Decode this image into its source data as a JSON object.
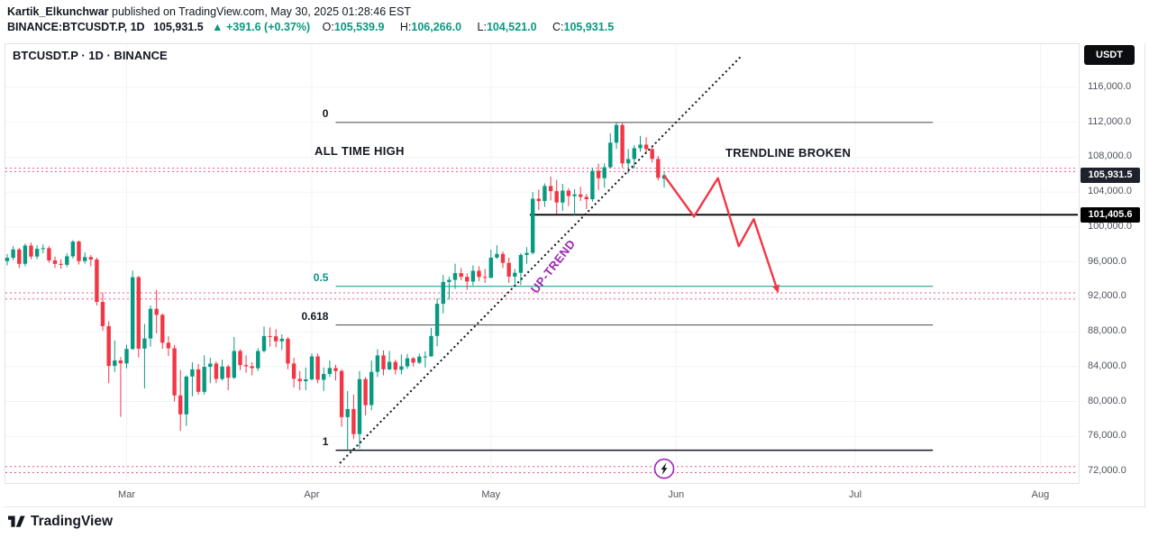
{
  "header": {
    "author": "Kartik_Elkunchwar",
    "published_text": " published on TradingView.com, May 30, 2025 01:28:46 EST",
    "symbol_line": {
      "symbol": "BINANCE:BTCUSDT.P, 1D",
      "last_price": "105,931.5",
      "change": "▲ +391.6 (+0.37%)",
      "o_label": "O:",
      "o_value": "105,539.9",
      "h_label": "H:",
      "h_value": "106,266.0",
      "l_label": "L:",
      "l_value": "104,521.0",
      "c_label": "C:",
      "c_value": "105,931.5"
    }
  },
  "chart_header": {
    "title": "BTCUSDT.P · 1D · BINANCE",
    "currency_button": "USDT"
  },
  "annotations": {
    "all_time_high": "ALL TIME HIGH",
    "trendline_broken": "TRENDLINE BROKEN",
    "uptrend": "UP-TREND"
  },
  "price_badges": {
    "last": {
      "text": "105,931.5",
      "price": 105931.5,
      "bg": "#1e222d"
    },
    "level": {
      "text": "101,405.6",
      "price": 101405.6,
      "bg": "#000000"
    }
  },
  "axes": {
    "price_labels": [
      "116,000.0",
      "112,000.0",
      "108,000.0",
      "104,000.0",
      "100,000.0",
      "96,000.0",
      "92,000.0",
      "88,000.0",
      "84,000.0",
      "80,000.0",
      "76,000.0",
      "72,000.0"
    ],
    "time_labels": [
      "Mar",
      "Apr",
      "May",
      "Jun",
      "Jul",
      "Aug"
    ]
  },
  "footer": {
    "brand": "TradingView"
  },
  "colors": {
    "up": "#089981",
    "down": "#f23645",
    "trendline": "#131722",
    "dotted_pink": "#e91e63",
    "purple": "#9c27b0",
    "grid": "#f2f3f7"
  },
  "chart_data": {
    "type": "candlestick",
    "symbol": "BTCUSDT.P",
    "interval": "1D",
    "exchange": "BINANCE",
    "title": "BTCUSDT.P · 1D · BINANCE",
    "ylim": [
      71500,
      117800
    ],
    "price_ticks": [
      116000,
      112000,
      108000,
      104000,
      100000,
      96000,
      92000,
      88000,
      84000,
      80000,
      76000,
      72000
    ],
    "month_indices": [
      20,
      51,
      81,
      112,
      142,
      173
    ],
    "candles": [
      [
        96100,
        96900,
        95600,
        96470
      ],
      [
        96470,
        97800,
        96200,
        97430
      ],
      [
        97430,
        97600,
        95300,
        95780
      ],
      [
        95780,
        98100,
        95500,
        97870
      ],
      [
        97870,
        98200,
        96300,
        96610
      ],
      [
        96610,
        97900,
        96300,
        97500
      ],
      [
        97500,
        98000,
        97000,
        97570
      ],
      [
        97570,
        97800,
        95900,
        96170
      ],
      [
        96170,
        96600,
        95300,
        95780
      ],
      [
        95780,
        96300,
        95200,
        95670
      ],
      [
        95670,
        97000,
        95400,
        96640
      ],
      [
        96640,
        98500,
        96400,
        98330
      ],
      [
        98330,
        98450,
        95700,
        96100
      ],
      [
        96100,
        97100,
        95800,
        96550
      ],
      [
        96550,
        96800,
        95500,
        96270
      ],
      [
        96270,
        96500,
        91000,
        91420
      ],
      [
        91420,
        92500,
        88100,
        88640
      ],
      [
        88640,
        89200,
        82100,
        84090
      ],
      [
        84090,
        87000,
        83400,
        84700
      ],
      [
        84700,
        85100,
        78250,
        84370
      ],
      [
        84370,
        86500,
        83800,
        86030
      ],
      [
        86030,
        95000,
        85900,
        94250
      ],
      [
        94250,
        94400,
        85050,
        86060
      ],
      [
        86060,
        88900,
        81500,
        87220
      ],
      [
        87220,
        91000,
        86300,
        90620
      ],
      [
        90620,
        92800,
        87800,
        89930
      ],
      [
        89930,
        90100,
        86050,
        86740
      ],
      [
        86740,
        87500,
        85200,
        86100
      ],
      [
        86100,
        86500,
        80000,
        80700
      ],
      [
        80700,
        83600,
        76620,
        78530
      ],
      [
        78530,
        83000,
        77200,
        82860
      ],
      [
        82860,
        84500,
        80600,
        83680
      ],
      [
        83680,
        84300,
        80800,
        81110
      ],
      [
        81110,
        85300,
        80800,
        83970
      ],
      [
        83970,
        85000,
        82100,
        84340
      ],
      [
        84340,
        84600,
        82100,
        82580
      ],
      [
        82580,
        84800,
        82400,
        84010
      ],
      [
        84010,
        84200,
        81300,
        82720
      ],
      [
        82720,
        87400,
        82600,
        85790
      ],
      [
        85790,
        86000,
        83600,
        84170
      ],
      [
        84170,
        85300,
        83300,
        84040
      ],
      [
        84040,
        84500,
        83000,
        83820
      ],
      [
        83820,
        86100,
        83500,
        85790
      ],
      [
        85790,
        88600,
        85600,
        87500
      ],
      [
        87500,
        88500,
        86300,
        87470
      ],
      [
        87470,
        88300,
        86200,
        86900
      ],
      [
        86900,
        87700,
        85900,
        87190
      ],
      [
        87190,
        87400,
        83700,
        84350
      ],
      [
        84350,
        85000,
        81600,
        82600
      ],
      [
        82600,
        83500,
        81300,
        82330
      ],
      [
        82330,
        83900,
        81300,
        82550
      ],
      [
        82550,
        85500,
        82400,
        85170
      ],
      [
        85170,
        85500,
        82100,
        82490
      ],
      [
        82490,
        83900,
        81200,
        83160
      ],
      [
        83160,
        84700,
        82800,
        83840
      ],
      [
        83840,
        84200,
        82400,
        83500
      ],
      [
        83500,
        83700,
        77100,
        78210
      ],
      [
        78210,
        81200,
        74436,
        79140
      ],
      [
        79140,
        80800,
        75700,
        76270
      ],
      [
        76270,
        83500,
        74600,
        82570
      ],
      [
        82570,
        82800,
        78400,
        79590
      ],
      [
        79590,
        84700,
        79000,
        83400
      ],
      [
        83400,
        86000,
        82800,
        85280
      ],
      [
        85280,
        85850,
        83000,
        83680
      ],
      [
        83680,
        85800,
        83600,
        84540
      ],
      [
        84540,
        84800,
        83100,
        83640
      ],
      [
        83640,
        85400,
        83100,
        84030
      ],
      [
        84030,
        85450,
        83750,
        84950
      ],
      [
        84950,
        85100,
        84000,
        84450
      ],
      [
        84450,
        85500,
        84300,
        85150
      ],
      [
        85150,
        85750,
        83900,
        85170
      ],
      [
        85170,
        88450,
        85150,
        87510
      ],
      [
        87510,
        91800,
        86330,
        91200
      ],
      [
        91200,
        94500,
        90100,
        93700
      ],
      [
        93700,
        94300,
        91700,
        93940
      ],
      [
        93940,
        95800,
        92900,
        94710
      ],
      [
        94710,
        95300,
        93900,
        94290
      ],
      [
        94290,
        94700,
        92800,
        93750
      ],
      [
        93750,
        95600,
        93300,
        94980
      ],
      [
        94980,
        95500,
        93800,
        94280
      ],
      [
        94280,
        95200,
        93600,
        94180
      ],
      [
        94180,
        97400,
        94150,
        96490
      ],
      [
        96490,
        97900,
        96350,
        96910
      ],
      [
        96910,
        97200,
        95300,
        95890
      ],
      [
        95890,
        96500,
        93600,
        94320
      ],
      [
        94320,
        95200,
        93400,
        94750
      ],
      [
        94750,
        97000,
        93350,
        96800
      ],
      [
        96800,
        97700,
        95800,
        97030
      ],
      [
        97030,
        104000,
        96850,
        103240
      ],
      [
        103240,
        104300,
        101950,
        102970
      ],
      [
        102970,
        105000,
        102300,
        104700
      ],
      [
        104700,
        105800,
        103050,
        104110
      ],
      [
        104110,
        105400,
        101500,
        102810
      ],
      [
        102810,
        104950,
        101850,
        104170
      ],
      [
        104170,
        104450,
        102400,
        103540
      ],
      [
        103540,
        104350,
        101350,
        103740
      ],
      [
        103740,
        104600,
        103000,
        103450
      ],
      [
        103450,
        103800,
        102050,
        103190
      ],
      [
        103190,
        106800,
        102900,
        106450
      ],
      [
        106450,
        107250,
        104250,
        105600
      ],
      [
        105600,
        107300,
        104500,
        106850
      ],
      [
        106850,
        110750,
        106750,
        109670
      ],
      [
        109670,
        111980,
        108950,
        111690
      ],
      [
        111690,
        111900,
        106800,
        107290
      ],
      [
        107290,
        108950,
        106150,
        107790
      ],
      [
        107790,
        109400,
        106700,
        109040
      ],
      [
        109040,
        110450,
        108650,
        109440
      ],
      [
        109440,
        110300,
        108550,
        108920
      ],
      [
        108920,
        109300,
        107400,
        107800
      ],
      [
        107800,
        108150,
        105350,
        105640
      ],
      [
        105539.9,
        106266,
        104521,
        105931.5
      ]
    ],
    "fib": {
      "start_index": 55,
      "end_index": 155,
      "levels": [
        {
          "label": "0",
          "price": 111980,
          "color": "#44484f",
          "width": 1
        },
        {
          "label": "0.5",
          "price": 93200,
          "color": "#009688",
          "width": 1
        },
        {
          "label": "0.618",
          "price": 88770,
          "color": "#44484f",
          "width": 1
        },
        {
          "label": "1",
          "price": 74420,
          "color": "#131722",
          "width": 1.5
        }
      ]
    },
    "hline": {
      "price": 101405.6,
      "start_index": 87.5
    },
    "trendline": {
      "x1_index": 55.8,
      "y1_price": 73000,
      "x2_index": 122.8,
      "y2_price": 119500
    },
    "projection_arrow": [
      [
        110,
        105900
      ],
      [
        115,
        101200
      ],
      [
        119,
        105600
      ],
      [
        122.5,
        97800
      ],
      [
        125,
        100900
      ],
      [
        129,
        92700
      ]
    ],
    "dotted_levels": [
      106750,
      106350,
      92450,
      91750,
      72550,
      71850
    ],
    "event_icon": {
      "index": 110,
      "price": 72300
    }
  }
}
